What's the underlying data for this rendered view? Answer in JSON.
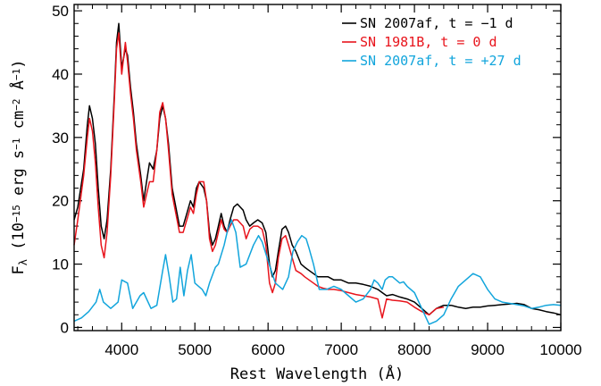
{
  "chart_data": {
    "type": "line",
    "xlabel": "Rest Wavelength (Å)",
    "ylabel_parts": [
      "F",
      "λ",
      " (10",
      "−15",
      " erg s",
      "−1",
      " cm",
      "−2",
      " Å",
      "−1",
      ")"
    ],
    "xlim": [
      3350,
      10000
    ],
    "ylim": [
      -0.5,
      51
    ],
    "x_ticks": [
      4000,
      5000,
      6000,
      7000,
      8000,
      9000,
      10000
    ],
    "y_ticks": [
      0,
      10,
      20,
      30,
      40,
      50
    ],
    "x_tick_labels": [
      "4000",
      "5000",
      "6000",
      "7000",
      "8000",
      "9000",
      "10000"
    ],
    "y_tick_labels": [
      "0",
      "10",
      "20",
      "30",
      "40",
      "50"
    ],
    "legend_position": "top-right",
    "series": [
      {
        "name": "SN 2007af, t = −1 d",
        "color": "#000000",
        "x": [
          3350,
          3400,
          3480,
          3530,
          3560,
          3600,
          3640,
          3680,
          3720,
          3760,
          3800,
          3850,
          3900,
          3930,
          3960,
          4000,
          4050,
          4080,
          4120,
          4160,
          4200,
          4260,
          4300,
          4340,
          4380,
          4430,
          4480,
          4520,
          4560,
          4600,
          4640,
          4690,
          4740,
          4790,
          4840,
          4890,
          4940,
          4980,
          5020,
          5060,
          5120,
          5160,
          5200,
          5240,
          5280,
          5320,
          5360,
          5400,
          5440,
          5480,
          5530,
          5580,
          5620,
          5660,
          5700,
          5750,
          5800,
          5860,
          5920,
          5970,
          6020,
          6060,
          6100,
          6140,
          6190,
          6240,
          6280,
          6330,
          6380,
          6450,
          6500,
          6560,
          6620,
          6680,
          6750,
          6820,
          6900,
          7000,
          7100,
          7200,
          7300,
          7400,
          7500,
          7560,
          7620,
          7700,
          7800,
          7900,
          8000,
          8100,
          8200,
          8300,
          8400,
          8500,
          8600,
          8700,
          8800,
          8900,
          9000,
          9100,
          9200,
          9300,
          9400,
          9500,
          9600,
          9700,
          9800,
          9900,
          10000
        ],
        "y": [
          17,
          19,
          25,
          32,
          35,
          33,
          29,
          22,
          16,
          14,
          17,
          25,
          37,
          45,
          48,
          41,
          44,
          43,
          38,
          34,
          29,
          24,
          20,
          23,
          26,
          25,
          28,
          33,
          35,
          33,
          29,
          22,
          19,
          16,
          16,
          18,
          20,
          19,
          22,
          23,
          22,
          20,
          15,
          13,
          14,
          16,
          18,
          16,
          15,
          17,
          19,
          19.5,
          19,
          18.5,
          17,
          16,
          16.5,
          17,
          16.5,
          15,
          10,
          8,
          9,
          12,
          15.5,
          16,
          15,
          13,
          12,
          10,
          9.5,
          9,
          8.5,
          8,
          8,
          8,
          7.5,
          7.5,
          7,
          7,
          6.8,
          6.5,
          6,
          5.5,
          5,
          5.2,
          4.8,
          4.5,
          4,
          3,
          2,
          3,
          3.5,
          3.5,
          3.2,
          3,
          3.2,
          3.2,
          3.4,
          3.5,
          3.6,
          3.7,
          3.8,
          3.6,
          3,
          2.8,
          2.5,
          2.3,
          2
        ]
      },
      {
        "name": "SN 1981B, t = 0 d",
        "color": "#e8141c",
        "x": [
          3350,
          3400,
          3480,
          3530,
          3560,
          3600,
          3640,
          3680,
          3720,
          3760,
          3800,
          3850,
          3900,
          3930,
          3960,
          4000,
          4050,
          4080,
          4120,
          4160,
          4200,
          4260,
          4300,
          4340,
          4380,
          4430,
          4480,
          4520,
          4560,
          4600,
          4640,
          4690,
          4740,
          4790,
          4840,
          4890,
          4940,
          4980,
          5020,
          5060,
          5120,
          5160,
          5200,
          5240,
          5280,
          5320,
          5360,
          5400,
          5440,
          5480,
          5530,
          5580,
          5620,
          5660,
          5700,
          5750,
          5800,
          5860,
          5920,
          5970,
          6020,
          6060,
          6100,
          6140,
          6190,
          6240,
          6280,
          6330,
          6380,
          6450,
          6500,
          6560,
          6620,
          6680,
          6750,
          6820,
          6900,
          7000,
          7100,
          7200,
          7300,
          7400,
          7500,
          7560,
          7620,
          7700,
          7800,
          7900,
          8000,
          8100,
          8200,
          8300,
          8400
        ],
        "y": [
          13,
          17,
          24,
          30,
          33,
          31,
          26,
          19,
          13,
          11,
          15,
          24,
          36,
          44,
          46.5,
          40,
          45,
          42,
          37,
          33,
          28,
          23,
          19,
          21,
          23,
          23,
          28,
          34,
          35.5,
          33,
          28,
          21,
          18,
          15,
          15,
          17,
          19,
          18,
          21,
          23,
          23,
          20,
          14,
          12,
          13,
          15,
          17,
          15.5,
          15,
          16,
          17,
          17,
          16.5,
          16,
          14,
          15.5,
          16,
          16,
          15.5,
          13,
          7,
          5.5,
          7,
          11,
          14,
          14.5,
          13,
          11,
          9,
          8.5,
          8,
          7.5,
          7,
          6.5,
          6.2,
          6,
          6,
          5.8,
          5.5,
          5.2,
          5,
          4.8,
          4.5,
          1.5,
          4.5,
          4.3,
          4.2,
          4,
          3.2,
          2.5,
          2,
          3,
          3.2
        ]
      },
      {
        "name": "SN 2007af, t = +27 d",
        "color": "#12a5dc",
        "x": [
          3350,
          3450,
          3550,
          3650,
          3700,
          3750,
          3850,
          3950,
          4000,
          4080,
          4150,
          4250,
          4300,
          4400,
          4480,
          4560,
          4600,
          4650,
          4700,
          4750,
          4800,
          4850,
          4900,
          4950,
          5000,
          5100,
          5150,
          5200,
          5280,
          5320,
          5400,
          5450,
          5500,
          5560,
          5620,
          5700,
          5800,
          5870,
          5920,
          6000,
          6100,
          6200,
          6280,
          6340,
          6400,
          6460,
          6520,
          6560,
          6620,
          6700,
          6800,
          6900,
          7000,
          7100,
          7200,
          7300,
          7400,
          7450,
          7500,
          7560,
          7600,
          7650,
          7700,
          7750,
          7800,
          7850,
          7900,
          8000,
          8100,
          8200,
          8300,
          8400,
          8500,
          8600,
          8700,
          8800,
          8900,
          9000,
          9100,
          9200,
          9300,
          9400,
          9500,
          9600,
          9700,
          9800,
          9900,
          10000
        ],
        "y": [
          1,
          1.5,
          2.5,
          4,
          6,
          4,
          3,
          4,
          7.5,
          7,
          3,
          5,
          5.5,
          3,
          3.5,
          9,
          11.5,
          8,
          4,
          4.5,
          9.5,
          5,
          9,
          11.5,
          7,
          6,
          5,
          7,
          9.5,
          10,
          13,
          15.5,
          17,
          15,
          9.5,
          10,
          13,
          14.5,
          13.5,
          10.5,
          7,
          6,
          8,
          12,
          13.5,
          14.5,
          14,
          12.5,
          10,
          6,
          6,
          6.5,
          6,
          5,
          4,
          4.5,
          6,
          7.5,
          7,
          6,
          7.5,
          8,
          8,
          7.5,
          7,
          7.2,
          6.5,
          5.5,
          3,
          0.5,
          1,
          2,
          4.5,
          6.5,
          7.5,
          8.5,
          8,
          6,
          4.5,
          4,
          3.8,
          3.6,
          3.4,
          3,
          3.2,
          3.5,
          3.6,
          3.5
        ]
      }
    ]
  }
}
